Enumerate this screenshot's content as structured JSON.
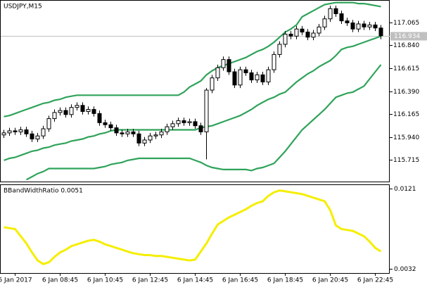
{
  "chart_data": {
    "type": "candlestick",
    "title": "USDJPY,M15",
    "ylim": [
      115.502,
      117.278
    ],
    "yticks": [
      117.065,
      {
        "value": 116.84,
        "label": "116.840"
      },
      116.615,
      {
        "value": 116.39,
        "label": "116.390"
      },
      116.165,
      {
        "value": 115.94,
        "label": "115.940"
      },
      115.715
    ],
    "last_price": 116.934,
    "xtick_labels": [
      "6 Jan 2017",
      "6 Jan 08:45",
      "6 Jan 10:45",
      "6 Jan 12:45",
      "6 Jan 14:45",
      "6 Jan 16:45",
      "6 Jan 18:45",
      "6 Jan 20:45",
      "6 Jan 22:45"
    ],
    "open": [
      115.96,
      115.98,
      116.0,
      115.99,
      116.01,
      115.97,
      115.92,
      115.95,
      116.02,
      116.12,
      116.18,
      116.2,
      116.16,
      116.23,
      116.25,
      116.19,
      116.21,
      116.17,
      116.08,
      116.06,
      116.03,
      115.98,
      115.97,
      115.99,
      115.97,
      115.88,
      115.91,
      115.95,
      115.96,
      115.99,
      116.04,
      116.07,
      116.1,
      116.08,
      116.09,
      116.05,
      115.99,
      116.4,
      116.52,
      116.62,
      116.7,
      116.58,
      116.45,
      116.6,
      116.57,
      116.5,
      116.55,
      116.48,
      116.6,
      116.75,
      116.85,
      116.95,
      116.93,
      117.0,
      116.97,
      116.92,
      116.96,
      117.02,
      117.1,
      117.2,
      117.15,
      117.08,
      117.06,
      117.0,
      117.05,
      117.02,
      117.04,
      117.01
    ],
    "high": [
      116.01,
      116.03,
      116.03,
      116.04,
      116.04,
      116.0,
      115.98,
      116.05,
      116.15,
      116.21,
      116.23,
      116.23,
      116.26,
      116.28,
      116.28,
      116.24,
      116.24,
      116.2,
      116.11,
      116.09,
      116.06,
      116.01,
      116.02,
      116.02,
      116.0,
      115.94,
      115.98,
      115.99,
      116.02,
      116.07,
      116.1,
      116.13,
      116.13,
      116.12,
      116.12,
      116.08,
      116.42,
      116.55,
      116.65,
      116.73,
      116.73,
      116.61,
      116.63,
      116.63,
      116.6,
      116.58,
      116.58,
      116.63,
      116.78,
      116.88,
      116.98,
      116.98,
      117.03,
      117.03,
      117.0,
      116.99,
      117.05,
      117.13,
      117.23,
      117.23,
      117.18,
      117.11,
      117.09,
      117.08,
      117.08,
      117.07,
      117.07,
      117.04
    ],
    "low": [
      115.93,
      115.95,
      115.96,
      115.96,
      115.94,
      115.89,
      115.89,
      115.92,
      115.99,
      116.09,
      116.15,
      116.13,
      116.13,
      116.2,
      116.16,
      116.16,
      116.14,
      116.05,
      116.03,
      116.0,
      115.95,
      115.94,
      115.94,
      115.94,
      115.85,
      115.85,
      115.88,
      115.92,
      115.93,
      115.96,
      116.01,
      116.04,
      116.05,
      116.05,
      116.02,
      115.96,
      115.72,
      116.37,
      116.49,
      116.59,
      116.55,
      116.42,
      116.42,
      116.54,
      116.47,
      116.47,
      116.45,
      116.45,
      116.57,
      116.72,
      116.82,
      116.9,
      116.9,
      116.94,
      116.89,
      116.89,
      116.93,
      116.99,
      117.07,
      117.12,
      117.05,
      117.03,
      116.97,
      116.97,
      116.99,
      116.99,
      116.98,
      116.9
    ],
    "close": [
      115.98,
      116.0,
      115.99,
      116.01,
      115.97,
      115.92,
      115.95,
      116.02,
      116.12,
      116.18,
      116.2,
      116.16,
      116.23,
      116.25,
      116.19,
      116.21,
      116.17,
      116.08,
      116.06,
      116.03,
      115.98,
      115.97,
      115.99,
      115.97,
      115.88,
      115.91,
      115.95,
      115.96,
      115.99,
      116.04,
      116.07,
      116.1,
      116.08,
      116.09,
      116.05,
      115.99,
      116.4,
      116.52,
      116.62,
      116.7,
      116.58,
      116.45,
      116.6,
      116.57,
      116.5,
      116.55,
      116.48,
      116.6,
      116.75,
      116.85,
      116.95,
      116.93,
      117.0,
      116.97,
      116.92,
      116.96,
      117.02,
      117.1,
      117.2,
      117.15,
      117.08,
      117.06,
      117.0,
      117.05,
      117.02,
      117.04,
      117.01,
      116.934
    ],
    "bands_color": "#2fa35a",
    "bands": [
      {
        "values": [
          116.14,
          116.15,
          116.17,
          116.19,
          116.21,
          116.23,
          116.25,
          116.27,
          116.28,
          116.3,
          116.31,
          116.33,
          116.34,
          116.35,
          116.35,
          116.35,
          116.35,
          116.35,
          116.35,
          116.35,
          116.35,
          116.35,
          116.35,
          116.35,
          116.35,
          116.35,
          116.35,
          116.35,
          116.35,
          116.35,
          116.35,
          116.35,
          116.38,
          116.43,
          116.46,
          116.49,
          116.55,
          116.59,
          116.62,
          116.64,
          116.66,
          116.68,
          116.7,
          116.72,
          116.75,
          116.78,
          116.8,
          116.83,
          116.87,
          116.92,
          116.97,
          117.0,
          117.04,
          117.12,
          117.15,
          117.18,
          117.21,
          117.24,
          117.25,
          117.26,
          117.26,
          117.26,
          117.26,
          117.25,
          117.25,
          117.24,
          117.23,
          117.22
        ]
      },
      {
        "values": [
          115.71,
          115.73,
          115.74,
          115.76,
          115.78,
          115.8,
          115.81,
          115.83,
          115.84,
          115.86,
          115.87,
          115.88,
          115.9,
          115.91,
          115.92,
          115.94,
          115.95,
          115.97,
          115.98,
          116.0,
          116.01,
          116.01,
          116.01,
          116.01,
          116.01,
          116.01,
          116.01,
          116.01,
          116.01,
          116.01,
          116.01,
          116.01,
          116.01,
          116.01,
          116.01,
          116.03,
          116.04,
          116.05,
          116.07,
          116.09,
          116.11,
          116.13,
          116.15,
          116.18,
          116.21,
          116.25,
          116.28,
          116.31,
          116.33,
          116.36,
          116.38,
          116.43,
          116.48,
          116.52,
          116.56,
          116.59,
          116.63,
          116.66,
          116.69,
          116.74,
          116.8,
          116.82,
          116.83,
          116.85,
          116.87,
          116.89,
          116.91,
          116.93
        ]
      },
      {
        "values": [
          null,
          null,
          null,
          null,
          115.52,
          115.55,
          115.58,
          115.6,
          115.63,
          115.63,
          115.63,
          115.63,
          115.63,
          115.63,
          115.63,
          115.63,
          115.63,
          115.64,
          115.65,
          115.67,
          115.68,
          115.69,
          115.71,
          115.72,
          115.73,
          115.73,
          115.73,
          115.73,
          115.73,
          115.73,
          115.73,
          115.73,
          115.73,
          115.73,
          115.71,
          115.69,
          115.66,
          115.64,
          115.63,
          115.62,
          115.62,
          115.62,
          115.62,
          115.62,
          115.61,
          115.63,
          115.64,
          115.66,
          115.68,
          115.74,
          115.8,
          115.87,
          115.94,
          116.01,
          116.06,
          116.11,
          116.16,
          116.21,
          116.27,
          116.33,
          116.35,
          116.37,
          116.38,
          116.41,
          116.44,
          116.51,
          116.58,
          116.65
        ]
      }
    ],
    "indicator": {
      "label": "BBandWidthRatio 0.0051",
      "color": "#f5ee00",
      "ylim": [
        0.0027,
        0.0125
      ],
      "yticks": [
        0.0121,
        0.0032
      ],
      "values": [
        0.0078,
        0.0077,
        0.0076,
        0.0068,
        0.006,
        0.005,
        0.0041,
        0.0037,
        0.0039,
        0.0045,
        0.005,
        0.0053,
        0.0057,
        0.0059,
        0.0061,
        0.0063,
        0.0064,
        0.0062,
        0.0059,
        0.0057,
        0.0055,
        0.0053,
        0.0051,
        0.0049,
        0.0048,
        0.0047,
        0.0047,
        0.0046,
        0.0046,
        0.0045,
        0.0044,
        0.0043,
        0.0042,
        0.0041,
        0.0042,
        0.0051,
        0.006,
        0.0071,
        0.0081,
        0.0085,
        0.0089,
        0.0092,
        0.0095,
        0.0098,
        0.0102,
        0.0105,
        0.0107,
        0.0113,
        0.0117,
        0.0119,
        0.0118,
        0.0117,
        0.0116,
        0.0115,
        0.0113,
        0.0111,
        0.0109,
        0.0107,
        0.0097,
        0.008,
        0.0076,
        0.0075,
        0.0074,
        0.0071,
        0.0068,
        0.0062,
        0.0055,
        0.0051
      ]
    }
  }
}
